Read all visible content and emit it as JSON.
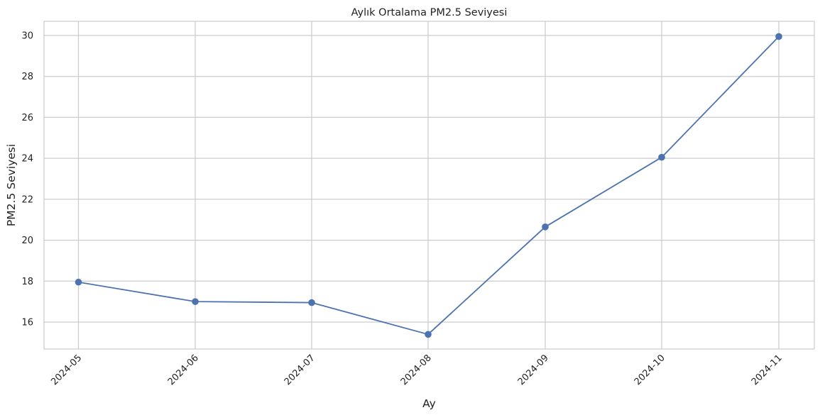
{
  "chart_data": {
    "type": "line",
    "title": "Aylık Ortalama PM2.5 Seviyesi",
    "xlabel": "Ay",
    "ylabel": "PM2.5 Seviyesi",
    "categories": [
      "2024-05",
      "2024-06",
      "2024-07",
      "2024-08",
      "2024-09",
      "2024-10",
      "2024-11"
    ],
    "series": [
      {
        "values": [
          17.95,
          17.0,
          16.95,
          15.4,
          20.65,
          24.05,
          29.95
        ],
        "color": "#4c72b0",
        "marker": "circle"
      }
    ],
    "yticks": [
      16,
      18,
      20,
      22,
      24,
      26,
      28,
      30
    ],
    "ylim": [
      14.65,
      30.7
    ],
    "grid": true,
    "xtick_rotation": -45
  }
}
